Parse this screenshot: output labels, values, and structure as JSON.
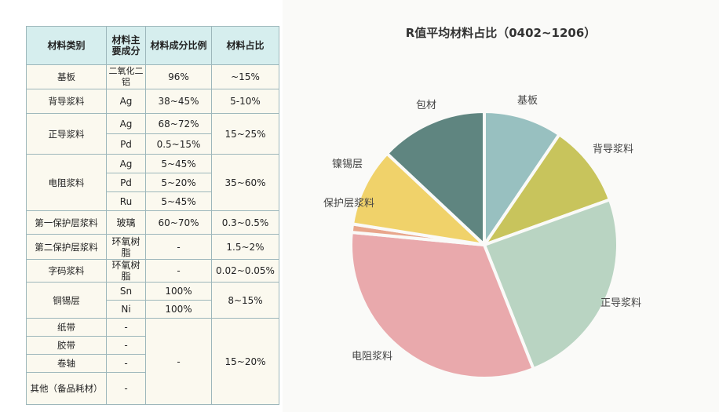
{
  "table": {
    "headers": [
      "材料类别",
      "材料主要成分",
      "材料成分比例",
      "材料占比"
    ],
    "rows": [
      {
        "category": "基板",
        "components": [
          {
            "name": "二氧化二铝",
            "ratio": "96%"
          }
        ],
        "share": "~15%"
      },
      {
        "category": "背导浆料",
        "components": [
          {
            "name": "Ag",
            "ratio": "38~45%"
          }
        ],
        "share": "5-10%"
      },
      {
        "category": "正导浆料",
        "components": [
          {
            "name": "Ag",
            "ratio": "68~72%"
          },
          {
            "name": "Pd",
            "ratio": "0.5~15%"
          }
        ],
        "share": "15~25%"
      },
      {
        "category": "电阻浆料",
        "components": [
          {
            "name": "Ag",
            "ratio": "5~45%"
          },
          {
            "name": "Pd",
            "ratio": "5~20%"
          },
          {
            "name": "Ru",
            "ratio": "5~45%"
          }
        ],
        "share": "35~60%"
      },
      {
        "category": "第一保护层浆料",
        "components": [
          {
            "name": "玻璃",
            "ratio": "60~70%"
          }
        ],
        "share": "0.3~0.5%"
      },
      {
        "category": "第二保护层浆料",
        "components": [
          {
            "name": "环氧树脂",
            "ratio": "-"
          }
        ],
        "share": "1.5~2%"
      },
      {
        "category": "字码浆料",
        "components": [
          {
            "name": "环氧树脂",
            "ratio": "-"
          }
        ],
        "share": "0.02~0.05%"
      },
      {
        "category": "铜锡层",
        "components": [
          {
            "name": "Sn",
            "ratio": "100%"
          },
          {
            "name": "Ni",
            "ratio": "100%"
          }
        ],
        "share": "8~15%"
      }
    ],
    "misc_rows": [
      {
        "category": "纸带",
        "component": "-"
      },
      {
        "category": "胶带",
        "component": "-"
      },
      {
        "category": "卷轴",
        "component": "-"
      },
      {
        "category": "其他（备品耗材）",
        "component": "-"
      }
    ],
    "misc_ratio": "-",
    "misc_share": "15~20%"
  },
  "chart_data": {
    "type": "pie",
    "title": "R值平均材料占比（0402~1206）",
    "slices": [
      {
        "label": "基板",
        "value": 9.5,
        "color": "#98c0c0"
      },
      {
        "label": "背导浆料",
        "value": 10,
        "color": "#c8c45c"
      },
      {
        "label": "正导浆料",
        "value": 24.5,
        "color": "#b9d4c2"
      },
      {
        "label": "电阻浆料",
        "value": 32.5,
        "color": "#e9a9ac"
      },
      {
        "label": "保护层浆料",
        "value": 1,
        "color": "#e8a68c"
      },
      {
        "label": "镍锡层",
        "value": 9.5,
        "color": "#f0d26a"
      },
      {
        "label": "包材",
        "value": 13,
        "color": "#5f8580"
      }
    ]
  }
}
